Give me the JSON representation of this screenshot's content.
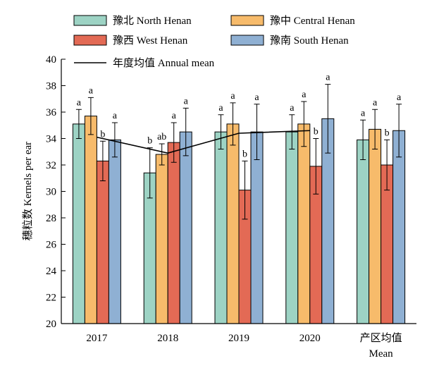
{
  "chart_data": {
    "type": "bar",
    "ylabel": "穗粒数 Kernels per ear",
    "ylim": [
      20,
      40
    ],
    "yticks": [
      20,
      22,
      24,
      26,
      28,
      30,
      32,
      34,
      36,
      38,
      40
    ],
    "categories": [
      "2017",
      "2018",
      "2019",
      "2020",
      "产区均值"
    ],
    "category_sublabels": [
      "",
      "",
      "",
      "",
      "Mean"
    ],
    "series": [
      {
        "name": "豫北 North Henan",
        "color": "#9dd3c4",
        "values": [
          35.1,
          31.4,
          34.5,
          34.5,
          33.9
        ],
        "errors": [
          1.1,
          1.9,
          1.3,
          1.3,
          1.5
        ],
        "significance": [
          "a",
          "b",
          "a",
          "a",
          "a"
        ]
      },
      {
        "name": "豫中 Central Henan",
        "color": "#f7bb6b",
        "values": [
          35.7,
          32.8,
          35.1,
          35.1,
          34.7
        ],
        "errors": [
          1.4,
          0.8,
          1.6,
          1.7,
          1.5
        ],
        "significance": [
          "a",
          "ab",
          "a",
          "a",
          "a"
        ]
      },
      {
        "name": "豫西 West Henan",
        "color": "#e36a55",
        "values": [
          32.3,
          33.7,
          30.1,
          31.9,
          32.0
        ],
        "errors": [
          1.5,
          1.5,
          2.2,
          2.1,
          1.9
        ],
        "significance": [
          "b",
          "a",
          "b",
          "b",
          "b"
        ]
      },
      {
        "name": "豫南 South Henan",
        "color": "#8fb0d3",
        "values": [
          33.9,
          34.5,
          34.5,
          35.5,
          34.6
        ],
        "errors": [
          1.3,
          1.8,
          2.1,
          2.6,
          2.0
        ],
        "significance": [
          "a",
          "a",
          "a",
          "a",
          "a"
        ]
      }
    ],
    "annual_mean": {
      "name": "年度均值 Annual mean",
      "values": [
        34.1,
        32.9,
        34.4,
        34.6
      ]
    },
    "legend_placement": "top",
    "grid": false
  }
}
